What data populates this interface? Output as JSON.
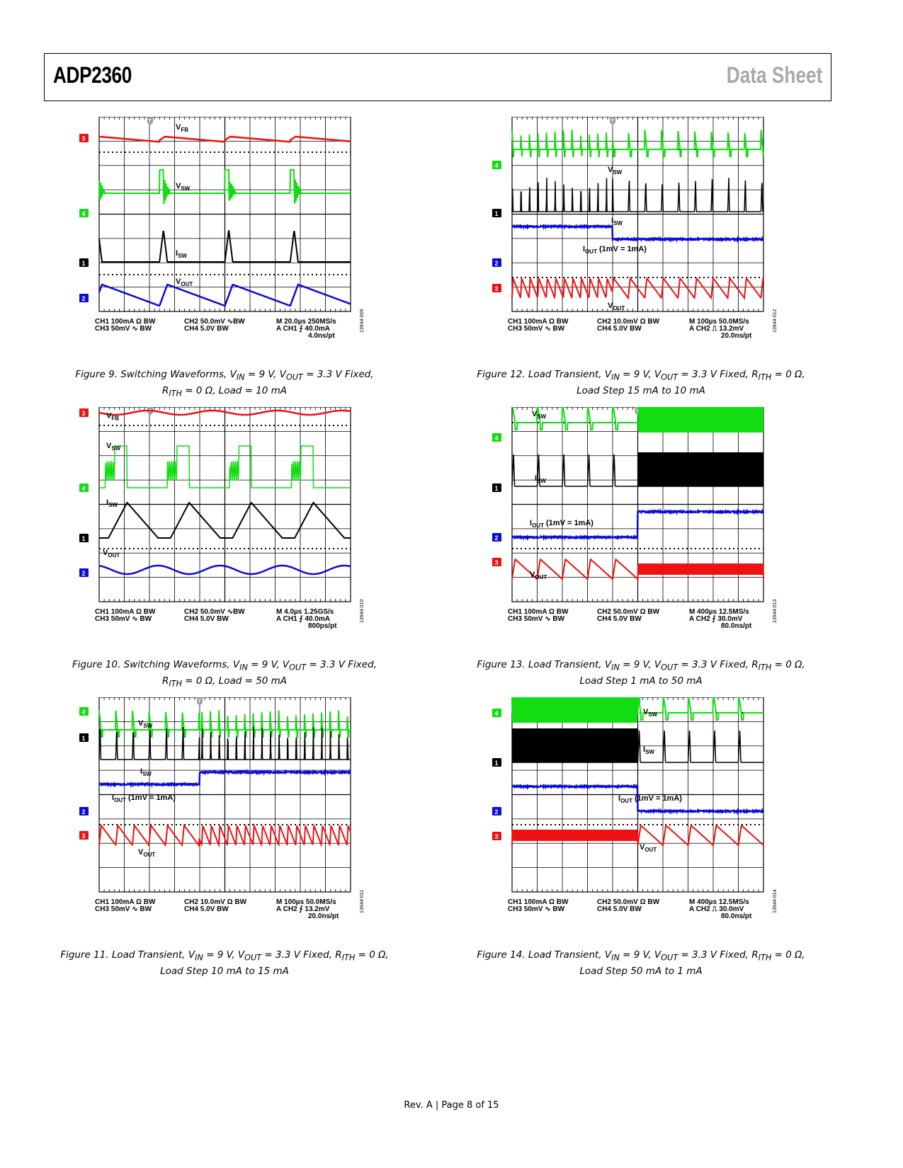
{
  "header": {
    "part": "ADP2360",
    "doc_type": "Data Sheet"
  },
  "colors": {
    "ch1": "#000000",
    "ch2": "#0a0adc",
    "ch3": "#ee1111",
    "ch4": "#11dd11",
    "grid": "#000000"
  },
  "figures": [
    {
      "id": "fig9",
      "caption_html": "Figure 9. Switching Waveforms, V<sub>IN</sub> = 9 V, V<sub>OUT</sub> = 3.3 V Fixed,<br>R<sub>ITH</sub> = 0 Ω, Load = 10 mA",
      "code": "13944-009",
      "settings": [
        "CH1  100mA Ω BW",
        "CH3  50mV ∿ BW",
        "CH2  50.0mV ∿BW",
        "CH4  5.0V     BW",
        "M 20.0µs 250MS/s",
        "A  CH1  ⨍ 40.0mA",
        "4.0ns/pt"
      ],
      "labels": [
        {
          "text": "V",
          "sub": "FB"
        },
        {
          "text": "V",
          "sub": "SW"
        },
        {
          "text": "I",
          "sub": "SW"
        },
        {
          "text": "V",
          "sub": "OUT"
        }
      ]
    },
    {
      "id": "fig10",
      "caption_html": "Figure 10. Switching Waveforms, V<sub>IN</sub> = 9 V, V<sub>OUT</sub> = 3.3 V Fixed,<br>R<sub>ITH</sub> = 0 Ω, Load = 50 mA",
      "code": "13944-010",
      "settings": [
        "CH1  100mA Ω BW",
        "CH3  50mV ∿ BW",
        "CH2  50.0mV ∿BW",
        "CH4  5.0V     BW",
        "M 4.0µs 1.25GS/s",
        "A  CH1  ⨍ 40.0mA",
        "800ps/pt"
      ],
      "labels": [
        {
          "text": "V",
          "sub": "FB"
        },
        {
          "text": "V",
          "sub": "SW"
        },
        {
          "text": "I",
          "sub": "SW"
        },
        {
          "text": "V",
          "sub": "OUT"
        }
      ]
    },
    {
      "id": "fig11",
      "caption_html": "Figure 11. Load Transient, V<sub>IN</sub> = 9 V, V<sub>OUT</sub> = 3.3 V Fixed, R<sub>ITH</sub> = 0 Ω,<br>Load Step 10 mA to 15 mA",
      "code": "13944-011",
      "settings": [
        "CH1  100mA Ω BW",
        "CH3  50mV ∿ BW",
        "CH2  10.0mV Ω BW",
        "CH4  5.0V     BW",
        "M 100µs 50.0MS/s",
        "A  CH2  ⨍ 13.2mV",
        "20.0ns/pt"
      ],
      "labels": [
        {
          "text": "V",
          "sub": "SW"
        },
        {
          "text": "I",
          "sub": "SW"
        },
        {
          "text": "I",
          "sub": "OUT",
          "extra": " (1mV = 1mA)"
        },
        {
          "text": "V",
          "sub": "OUT"
        }
      ]
    },
    {
      "id": "fig12",
      "caption_html": "Figure 12. Load Transient, V<sub>IN</sub> = 9 V, V<sub>OUT</sub> = 3.3 V Fixed, R<sub>ITH</sub> = 0 Ω,<br>Load Step 15 mA to 10 mA",
      "code": "13944-012",
      "settings": [
        "CH1  100mA Ω BW",
        "CH3  50mV ∿ BW",
        "CH2  10.0mV Ω BW",
        "CH4  5.0V     BW",
        "M 100µs 50.0MS/s",
        "A  CH2  ⎍ 13.2mV",
        "20.0ns/pt"
      ],
      "labels": [
        {
          "text": "V",
          "sub": "SW"
        },
        {
          "text": "I",
          "sub": "SW"
        },
        {
          "text": "I",
          "sub": "OUT",
          "extra": " (1mV = 1mA)"
        },
        {
          "text": "V",
          "sub": "OUT"
        }
      ]
    },
    {
      "id": "fig13",
      "caption_html": "Figure 13. Load Transient, V<sub>IN</sub> = 9 V, V<sub>OUT</sub> = 3.3 V Fixed, R<sub>ITH</sub> = 0 Ω,<br>Load Step 1 mA to 50 mA",
      "code": "13944-013",
      "settings": [
        "CH1  100mA Ω BW",
        "CH3  50mV ∿ BW",
        "CH2  50.0mV Ω BW",
        "CH4  5.0V     BW",
        "M 400µs 12.5MS/s",
        "A  CH2  ⨍ 30.0mV",
        "80.0ns/pt"
      ],
      "labels": [
        {
          "text": "V",
          "sub": "SW"
        },
        {
          "text": "I",
          "sub": "SW"
        },
        {
          "text": "I",
          "sub": "OUT",
          "extra": " (1mV = 1mA)"
        },
        {
          "text": "V",
          "sub": "OUT"
        }
      ]
    },
    {
      "id": "fig14",
      "caption_html": "Figure 14. Load Transient, V<sub>IN</sub> = 9 V, V<sub>OUT</sub> = 3.3 V Fixed, R<sub>ITH</sub> = 0 Ω,<br>Load Step 50 mA to 1 mA",
      "code": "13944-014",
      "settings": [
        "CH1  100mA Ω BW",
        "CH3  50mV ∿ BW",
        "CH2  50.0mV Ω BW",
        "CH4  5.0V     BW",
        "M 400µs 12.5MS/s",
        "A  CH2  ⎍ 30.0mV",
        "80.0ns/pt"
      ],
      "labels": [
        {
          "text": "V",
          "sub": "SW"
        },
        {
          "text": "I",
          "sub": "SW"
        },
        {
          "text": "I",
          "sub": "OUT",
          "extra": " (1mV = 1mA)"
        },
        {
          "text": "V",
          "sub": "OUT"
        }
      ]
    }
  ],
  "footer": {
    "text": "Rev. A | Page 8 of 15"
  }
}
